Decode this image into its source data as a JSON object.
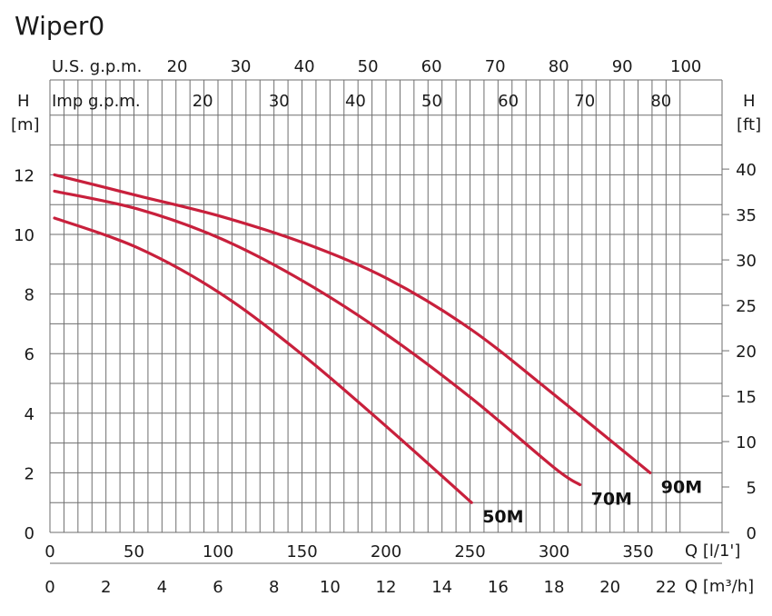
{
  "chart_data": {
    "type": "line",
    "title": "Wiper0",
    "x_unit_label": "Q [l/1']",
    "x2_unit_label": "Q [m³/h]",
    "us_gpm_label": "U.S. g.p.m.",
    "imp_gpm_label": "Imp g.p.m.",
    "y_left_label": "H",
    "y_left_unit": "[m]",
    "y_right_label": "H",
    "y_right_unit": "[ft]",
    "xlim": [
      0,
      380
    ],
    "ylim": [
      0,
      14
    ],
    "grid": true,
    "x_ticks": [
      "0",
      "50",
      "100",
      "150",
      "200",
      "250",
      "300",
      "350"
    ],
    "x2_ticks": [
      "0",
      "2",
      "4",
      "6",
      "8",
      "10",
      "12",
      "14",
      "16",
      "18",
      "20",
      "22"
    ],
    "us_gpm_ticks": [
      "20",
      "30",
      "40",
      "50",
      "60",
      "70",
      "80",
      "90",
      "100"
    ],
    "imp_gpm_ticks": [
      "20",
      "30",
      "40",
      "50",
      "60",
      "70",
      "80"
    ],
    "y_ticks": [
      "0",
      "2",
      "4",
      "6",
      "8",
      "10",
      "12"
    ],
    "y_right_ticks": [
      "0",
      "5",
      "10",
      "15",
      "20",
      "25",
      "30",
      "35",
      "40"
    ],
    "curve_color": "#c8203c",
    "series": [
      {
        "name": "50M",
        "x": [
          0,
          50,
          100,
          150,
          200,
          250
        ],
        "y": [
          10.55,
          9.55,
          8.0,
          5.9,
          3.5,
          1.0
        ]
      },
      {
        "name": "70M",
        "x": [
          0,
          50,
          100,
          150,
          200,
          250,
          300,
          315
        ],
        "y": [
          11.45,
          10.85,
          9.85,
          8.4,
          6.6,
          4.5,
          2.15,
          1.6
        ]
      },
      {
        "name": "90M",
        "x": [
          0,
          50,
          100,
          150,
          200,
          250,
          300,
          357
        ],
        "y": [
          12.0,
          11.3,
          10.6,
          9.7,
          8.5,
          6.8,
          4.6,
          2.0
        ]
      }
    ]
  }
}
